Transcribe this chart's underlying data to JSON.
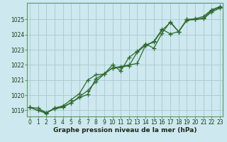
{
  "xlabel": "Graphe pression niveau de la mer (hPa)",
  "background_color": "#cde8ef",
  "grid_color": "#aac8d0",
  "line_color": "#2d6b2d",
  "spine_color": "#5a9a5a",
  "label_color": "#1a3a1a",
  "ylim": [
    1018.6,
    1026.1
  ],
  "xlim": [
    -0.3,
    23.3
  ],
  "yticks": [
    1019,
    1020,
    1021,
    1022,
    1023,
    1024,
    1025
  ],
  "xticks": [
    0,
    1,
    2,
    3,
    4,
    5,
    6,
    7,
    8,
    9,
    10,
    11,
    12,
    13,
    14,
    15,
    16,
    17,
    18,
    19,
    20,
    21,
    22,
    23
  ],
  "series1": [
    1019.2,
    1019.15,
    1018.85,
    1019.1,
    1019.2,
    1019.5,
    1019.9,
    1020.3,
    1020.9,
    1021.4,
    1021.8,
    1021.9,
    1022.0,
    1022.1,
    1023.3,
    1023.5,
    1024.3,
    1024.8,
    1024.2,
    1025.0,
    1025.0,
    1025.1,
    1025.6,
    1025.8
  ],
  "series2": [
    1019.2,
    1019.0,
    1018.85,
    1019.15,
    1019.3,
    1019.7,
    1020.1,
    1021.0,
    1021.35,
    1021.4,
    1022.0,
    1021.6,
    1022.5,
    1022.9,
    1023.4,
    1023.1,
    1024.1,
    1024.85,
    1024.2,
    1025.0,
    1025.05,
    1025.2,
    1025.65,
    1025.85
  ],
  "series3": [
    1019.2,
    1019.0,
    1018.8,
    1019.15,
    1019.25,
    1019.5,
    1019.85,
    1020.05,
    1021.1,
    1021.4,
    1021.8,
    1021.85,
    1021.95,
    1022.85,
    1023.3,
    1023.55,
    1024.35,
    1024.05,
    1024.2,
    1024.95,
    1025.0,
    1025.05,
    1025.5,
    1025.75
  ],
  "tick_fontsize": 5.5,
  "xlabel_fontsize": 6.5
}
